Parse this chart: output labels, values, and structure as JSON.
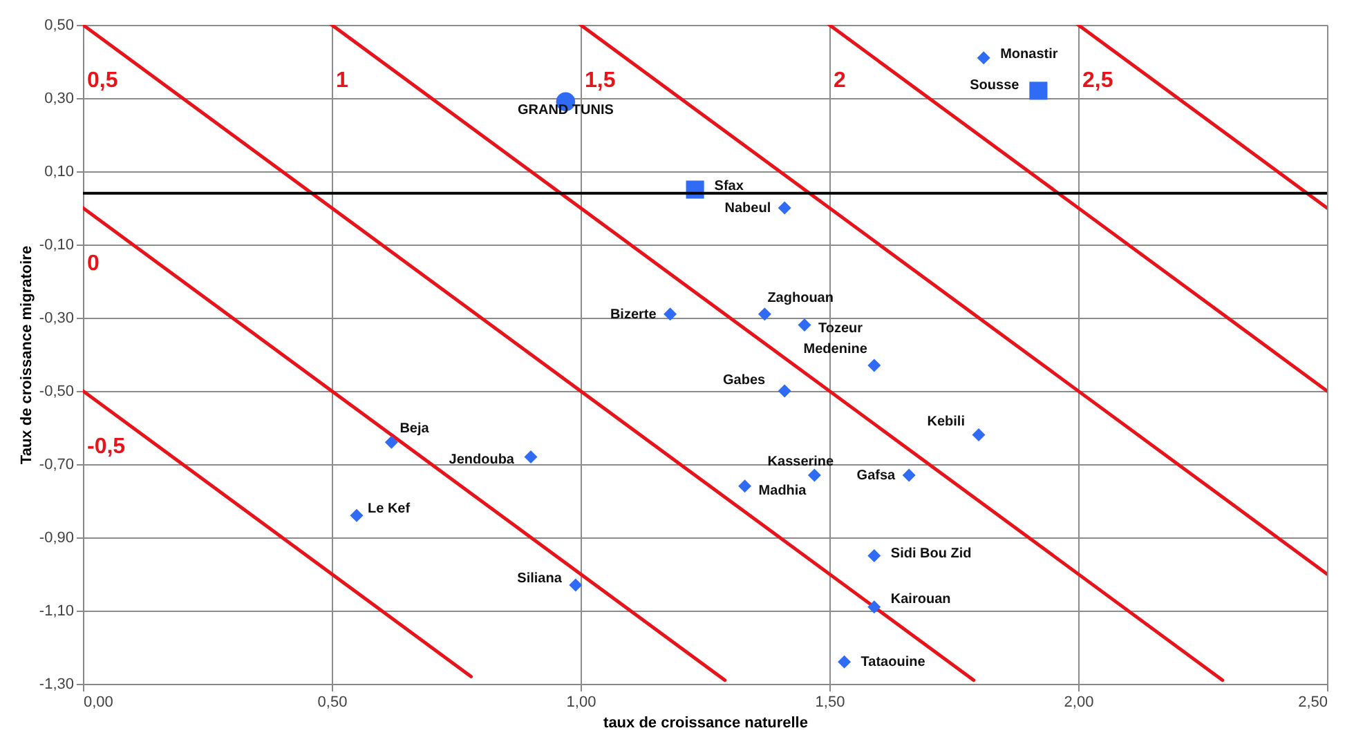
{
  "chart_data": {
    "type": "scatter",
    "xlabel": "taux de croissance naturelle",
    "ylabel": "Taux de croissance migratoire",
    "xlim": [
      0,
      2.5
    ],
    "ylim": [
      -1.3,
      0.5
    ],
    "xticks": [
      {
        "value": 0,
        "label": "0,00"
      },
      {
        "value": 0.5,
        "label": "0,50"
      },
      {
        "value": 1,
        "label": "1,00"
      },
      {
        "value": 1.5,
        "label": "1,50"
      },
      {
        "value": 2,
        "label": "2,00"
      },
      {
        "value": 2.5,
        "label": "2,50"
      }
    ],
    "yticks": [
      {
        "value": 0.5,
        "label": "0,50"
      },
      {
        "value": 0.3,
        "label": "0,30"
      },
      {
        "value": 0.1,
        "label": "0,10"
      },
      {
        "value": -0.1,
        "label": "-0,10"
      },
      {
        "value": -0.3,
        "label": "-0,30"
      },
      {
        "value": -0.5,
        "label": "-0,50"
      },
      {
        "value": -0.7,
        "label": "-0,70"
      },
      {
        "value": -0.9,
        "label": "-0,90"
      },
      {
        "value": -1.1,
        "label": "-1,10"
      },
      {
        "value": -1.3,
        "label": "-1,30"
      }
    ],
    "grid": true,
    "series": [
      {
        "marker": "diamond",
        "color": "#2f6bf5",
        "x": [
          1.81,
          1.41,
          1.18,
          1.37,
          1.45,
          1.59,
          1.41,
          1.8,
          1.66,
          1.47,
          1.33,
          1.59,
          1.59,
          1.53,
          0.62,
          0.9,
          0.55,
          0.99
        ],
        "values": [
          0.41,
          0.0,
          -0.29,
          -0.29,
          -0.32,
          -0.43,
          -0.5,
          -0.62,
          -0.73,
          -0.73,
          -0.76,
          -0.95,
          -1.09,
          -1.24,
          -0.64,
          -0.68,
          -0.84,
          -1.03
        ]
      },
      {
        "marker": "square",
        "color": "#2f6bf5",
        "x": [
          1.92,
          1.23
        ],
        "values": [
          0.32,
          0.05
        ]
      },
      {
        "marker": "circle",
        "color": "#2f6bf5",
        "x": [
          0.97
        ],
        "values": [
          0.29
        ]
      },
      {
        "type": "line",
        "name": "-0,5",
        "color": "#e8141b",
        "x": [
          0,
          0.78
        ],
        "values": [
          -0.5,
          -1.28
        ]
      },
      {
        "type": "line",
        "name": "0",
        "color": "#e8141b",
        "x": [
          0,
          1.29
        ],
        "values": [
          0,
          -1.29
        ]
      },
      {
        "type": "line",
        "name": "0,5",
        "color": "#e8141b",
        "x": [
          0,
          1.79
        ],
        "values": [
          0.5,
          -1.29
        ]
      },
      {
        "type": "line",
        "name": "1",
        "color": "#e8141b",
        "x": [
          0.5,
          2.29
        ],
        "values": [
          0.5,
          -1.29
        ]
      },
      {
        "type": "line",
        "name": "1,5",
        "color": "#e8141b",
        "x": [
          1.0,
          2.5
        ],
        "values": [
          0.5,
          -1.0
        ]
      },
      {
        "type": "line",
        "name": "2",
        "color": "#e8141b",
        "x": [
          1.5,
          2.5
        ],
        "values": [
          0.5,
          -0.5
        ]
      },
      {
        "type": "line",
        "name": "2,5",
        "color": "#e8141b",
        "x": [
          2.0,
          2.5
        ],
        "values": [
          0.5,
          0.0
        ]
      }
    ],
    "ref_lines": [
      {
        "axis": "y",
        "value": 0.04,
        "color": "#000000"
      }
    ],
    "annotations": [
      {
        "text": "Monastir",
        "x": 1.81,
        "y": 0.41
      },
      {
        "text": "Sousse",
        "x": 1.92,
        "y": 0.32
      },
      {
        "text": "GRAND TUNIS",
        "x": 0.97,
        "y": 0.29
      },
      {
        "text": "Sfax",
        "x": 1.23,
        "y": 0.05
      },
      {
        "text": "Nabeul",
        "x": 1.41,
        "y": 0.0
      },
      {
        "text": "Bizerte",
        "x": 1.18,
        "y": -0.29
      },
      {
        "text": "Zaghouan",
        "x": 1.37,
        "y": -0.29
      },
      {
        "text": "Tozeur",
        "x": 1.45,
        "y": -0.32
      },
      {
        "text": "Medenine",
        "x": 1.59,
        "y": -0.43
      },
      {
        "text": "Gabes",
        "x": 1.41,
        "y": -0.5
      },
      {
        "text": "Kebili",
        "x": 1.8,
        "y": -0.62
      },
      {
        "text": "Gafsa",
        "x": 1.66,
        "y": -0.73
      },
      {
        "text": "Kasserine",
        "x": 1.47,
        "y": -0.73
      },
      {
        "text": "Madhia",
        "x": 1.33,
        "y": -0.76
      },
      {
        "text": "Sidi Bou Zid",
        "x": 1.59,
        "y": -0.95
      },
      {
        "text": "Kairouan",
        "x": 1.59,
        "y": -1.09
      },
      {
        "text": "Tataouine",
        "x": 1.53,
        "y": -1.24
      },
      {
        "text": "Beja",
        "x": 0.62,
        "y": -0.64
      },
      {
        "text": "Jendouba",
        "x": 0.9,
        "y": -0.68
      },
      {
        "text": "Le Kef",
        "x": 0.55,
        "y": -0.84
      },
      {
        "text": "Siliana",
        "x": 0.99,
        "y": -1.03
      }
    ]
  }
}
